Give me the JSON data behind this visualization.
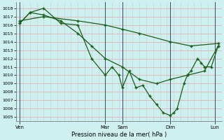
{
  "xlabel": "Pression niveau de la mer( hPa )",
  "bg_color": "#cef0ee",
  "grid_color_h": "#ddb0b0",
  "grid_color_v": "#c8c8d8",
  "line_color": "#1a5c1a",
  "ylim": [
    1004.5,
    1018.7
  ],
  "yticks": [
    1005,
    1006,
    1007,
    1008,
    1009,
    1010,
    1011,
    1012,
    1013,
    1014,
    1015,
    1016,
    1017,
    1018
  ],
  "xlim": [
    0,
    30
  ],
  "xtick_labels": [
    "Ven",
    "Mar",
    "Sam",
    "Dim",
    "Lun"
  ],
  "xtick_positions": [
    0.5,
    13.0,
    15.5,
    22.5,
    29.0
  ],
  "line1_x": [
    0.5,
    2.0,
    4.0,
    6.5,
    9.0,
    11.0,
    13.0,
    14.0,
    15.0,
    15.5,
    16.5,
    17.5,
    18.5,
    19.5,
    20.5,
    21.5,
    22.5,
    23.0,
    23.5,
    24.5,
    25.0,
    25.5,
    26.5,
    27.0,
    27.5,
    28.5,
    29.5
  ],
  "line1_y": [
    1016.2,
    1017.5,
    1018.0,
    1016.2,
    1016.0,
    1012.0,
    1010.0,
    1011.0,
    1010.0,
    1008.5,
    1010.5,
    1008.5,
    1008.8,
    1007.5,
    1006.5,
    1005.5,
    1005.2,
    1005.5,
    1006.0,
    1009.0,
    1010.0,
    1010.5,
    1012.0,
    1011.5,
    1011.0,
    1011.0,
    1013.5
  ],
  "line2_x": [
    0.5,
    2.0,
    4.0,
    6.5,
    9.0,
    11.0,
    13.0,
    15.5,
    18.0,
    20.5,
    22.5,
    25.0,
    27.5,
    29.5
  ],
  "line2_y": [
    1016.2,
    1017.5,
    1017.2,
    1016.5,
    1015.0,
    1013.5,
    1012.0,
    1011.0,
    1009.5,
    1009.0,
    1009.5,
    1010.0,
    1010.5,
    1013.5
  ],
  "line3_x": [
    0.5,
    4.0,
    9.0,
    13.0,
    15.5,
    18.0,
    22.5,
    25.5,
    29.5
  ],
  "line3_y": [
    1016.5,
    1017.0,
    1016.5,
    1016.0,
    1015.5,
    1015.0,
    1014.0,
    1013.5,
    1013.8
  ]
}
